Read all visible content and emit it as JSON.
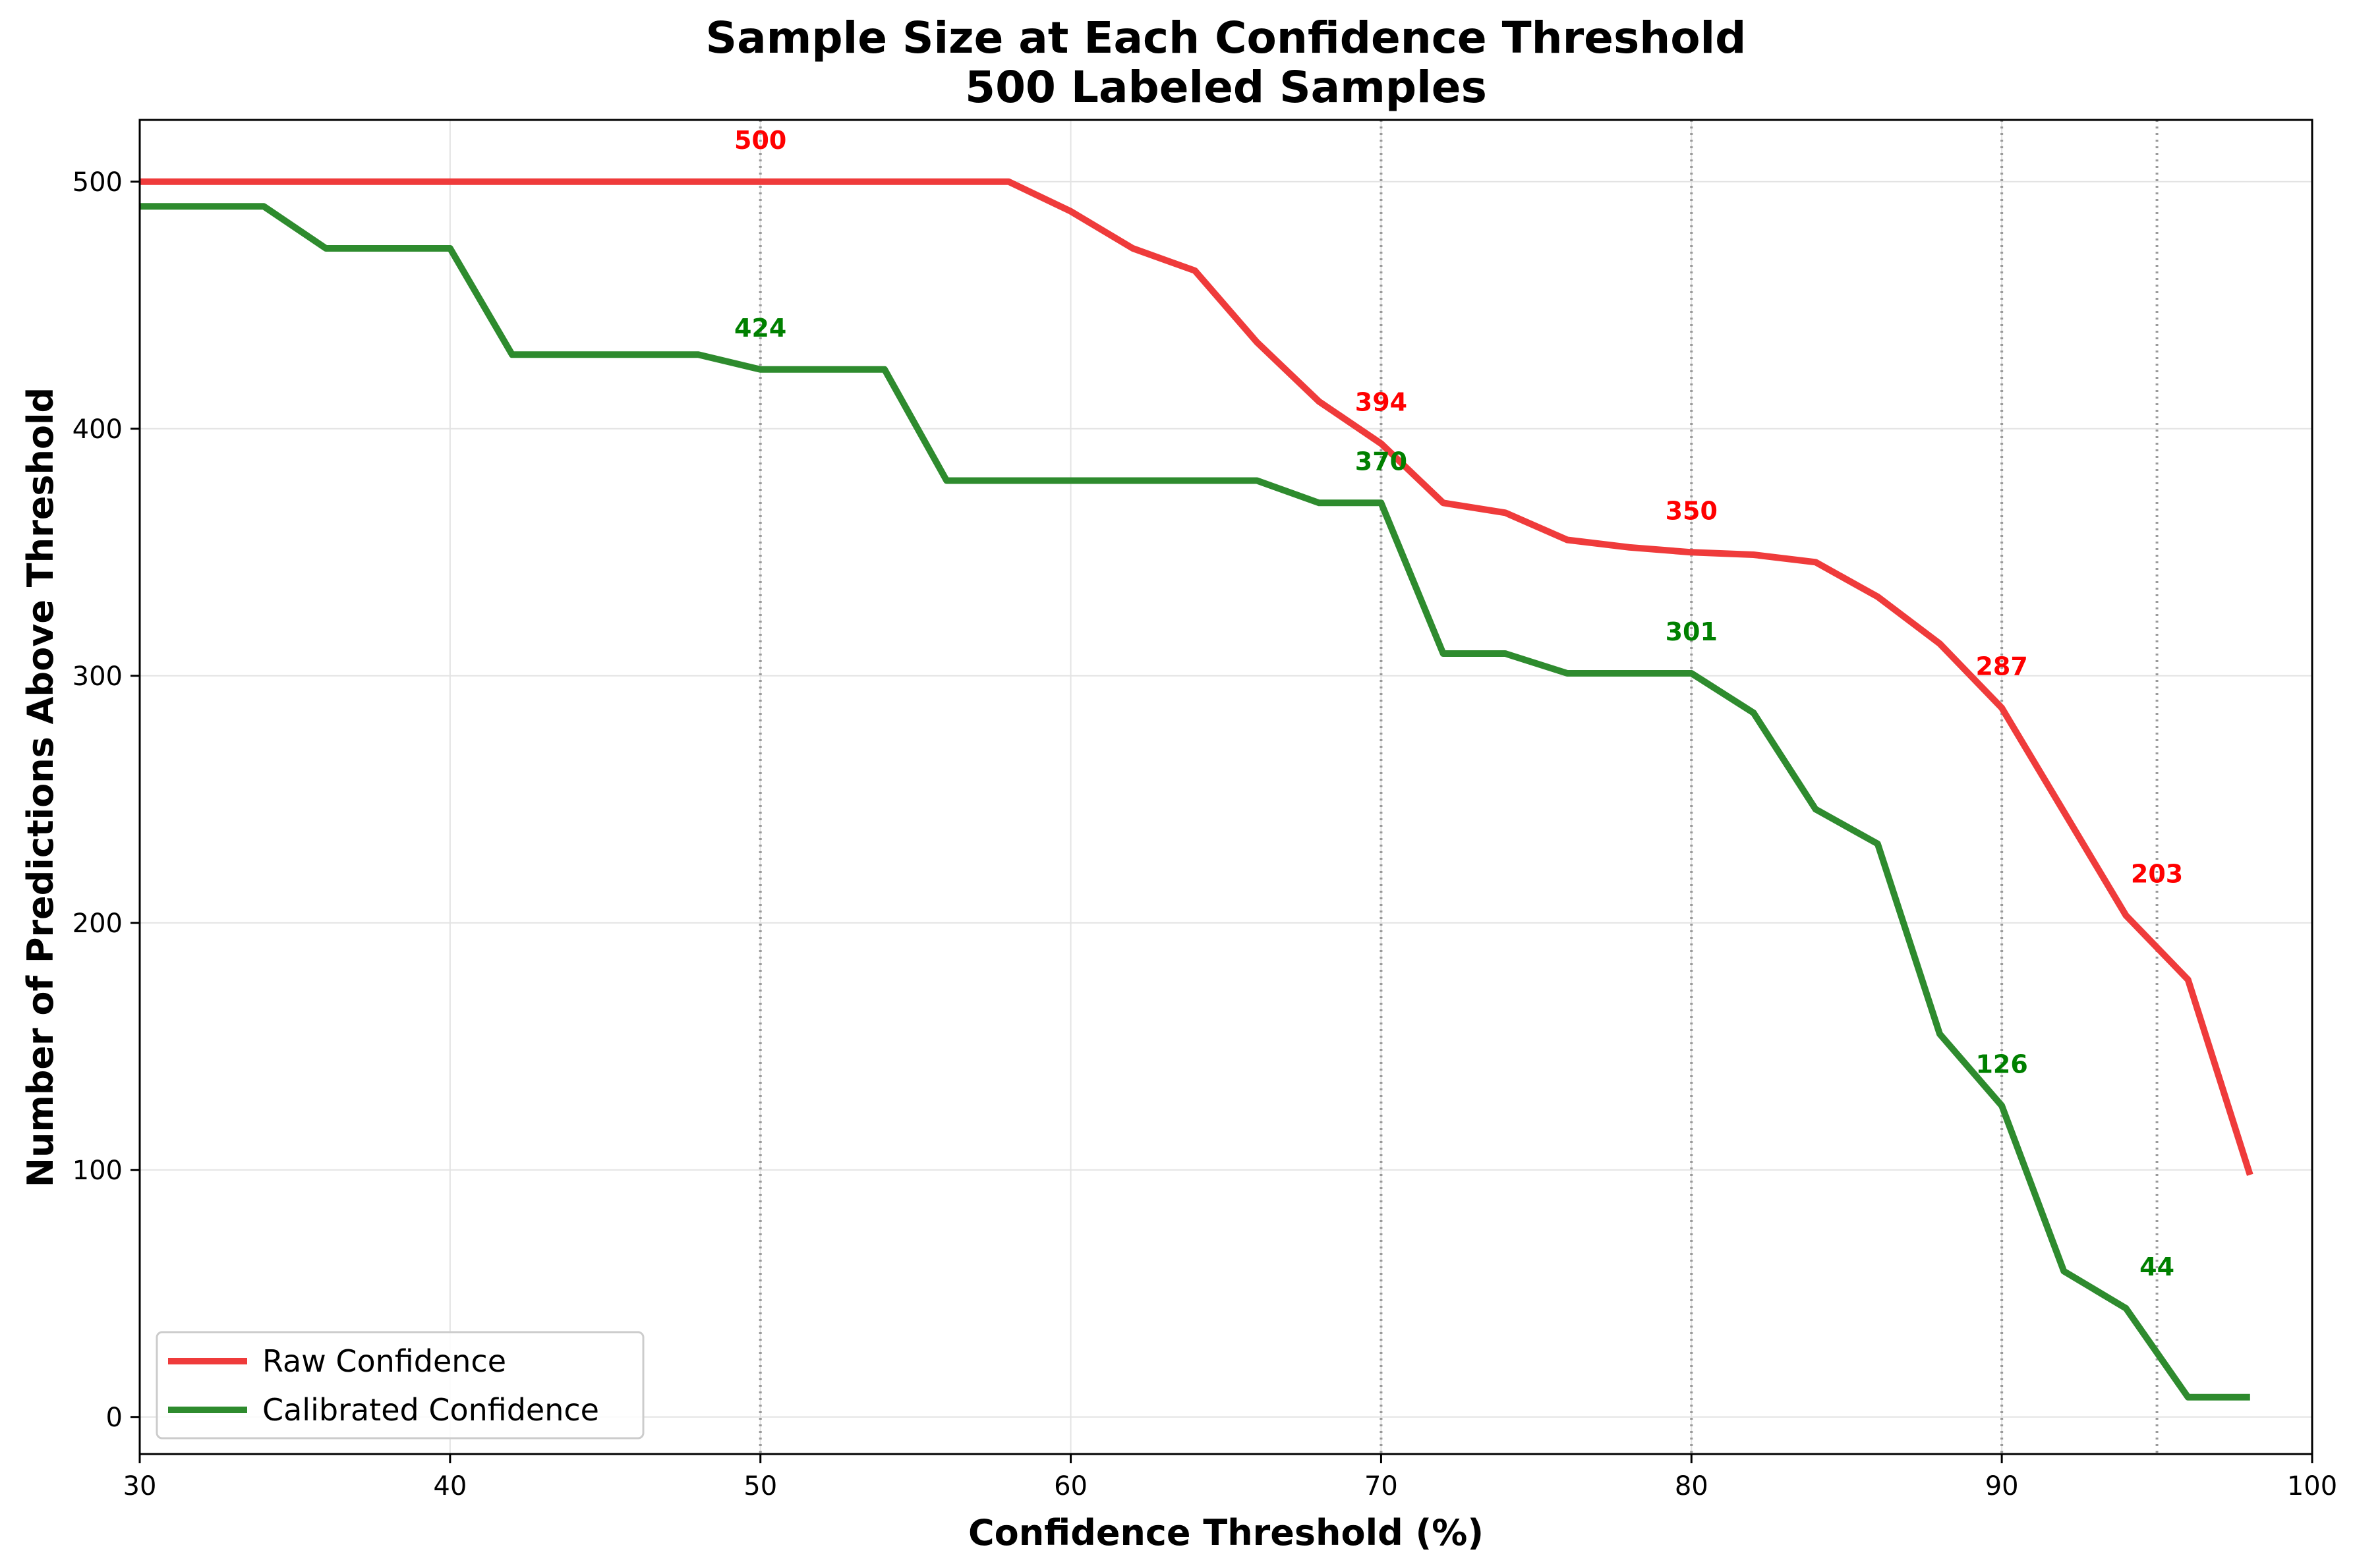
{
  "chart_data": {
    "type": "line",
    "title": "Sample Size at Each Confidence Threshold",
    "subtitle": "500 Labeled Samples",
    "xlabel": "Confidence Threshold (%)",
    "ylabel": "Number of Predictions Above Threshold",
    "xlim": [
      30,
      100
    ],
    "ylim": [
      -15,
      525
    ],
    "xticks": [
      30,
      40,
      50,
      60,
      70,
      80,
      90,
      100
    ],
    "yticks": [
      0,
      100,
      200,
      300,
      400,
      500
    ],
    "grid": true,
    "legend_position": "lower-left",
    "reference_lines_x": [
      50,
      70,
      80,
      90,
      95
    ],
    "series": [
      {
        "name": "Raw Confidence",
        "color": "#ef3b3b",
        "x": [
          30,
          32,
          34,
          36,
          38,
          40,
          42,
          44,
          46,
          48,
          50,
          52,
          54,
          56,
          58,
          60,
          62,
          64,
          66,
          68,
          70,
          72,
          74,
          76,
          78,
          80,
          82,
          84,
          86,
          88,
          90,
          92,
          94,
          96,
          98
        ],
        "values": [
          500,
          500,
          500,
          500,
          500,
          500,
          500,
          500,
          500,
          500,
          500,
          500,
          500,
          500,
          500,
          488,
          473,
          464,
          435,
          411,
          394,
          370,
          366,
          355,
          352,
          350,
          349,
          346,
          332,
          313,
          287,
          245,
          203,
          177,
          98
        ]
      },
      {
        "name": "Calibrated Confidence",
        "color": "#2e8b2e",
        "x": [
          30,
          32,
          34,
          36,
          38,
          40,
          42,
          44,
          46,
          48,
          50,
          52,
          54,
          56,
          58,
          60,
          62,
          64,
          66,
          68,
          70,
          72,
          74,
          76,
          78,
          80,
          82,
          84,
          86,
          88,
          90,
          92,
          94,
          96,
          98
        ],
        "values": [
          490,
          490,
          490,
          473,
          473,
          473,
          430,
          430,
          430,
          430,
          424,
          424,
          424,
          379,
          379,
          379,
          379,
          379,
          379,
          370,
          370,
          309,
          309,
          301,
          301,
          301,
          285,
          246,
          232,
          155,
          126,
          59,
          44,
          8,
          8
        ]
      }
    ],
    "annotations": [
      {
        "series": 0,
        "x": 50,
        "y": 500,
        "text": "500",
        "color": "#ff0000"
      },
      {
        "series": 0,
        "x": 70,
        "y": 394,
        "text": "394",
        "color": "#ff0000"
      },
      {
        "series": 0,
        "x": 80,
        "y": 350,
        "text": "350",
        "color": "#ff0000"
      },
      {
        "series": 0,
        "x": 90,
        "y": 287,
        "text": "287",
        "color": "#ff0000"
      },
      {
        "series": 0,
        "x": 95,
        "y": 203,
        "text": "203",
        "color": "#ff0000"
      },
      {
        "series": 1,
        "x": 50,
        "y": 424,
        "text": "424",
        "color": "#008000"
      },
      {
        "series": 1,
        "x": 70,
        "y": 370,
        "text": "370",
        "color": "#008000"
      },
      {
        "series": 1,
        "x": 80,
        "y": 301,
        "text": "301",
        "color": "#008000"
      },
      {
        "series": 1,
        "x": 90,
        "y": 126,
        "text": "126",
        "color": "#008000"
      },
      {
        "series": 1,
        "x": 95,
        "y": 44,
        "text": "44",
        "color": "#008000"
      }
    ]
  }
}
